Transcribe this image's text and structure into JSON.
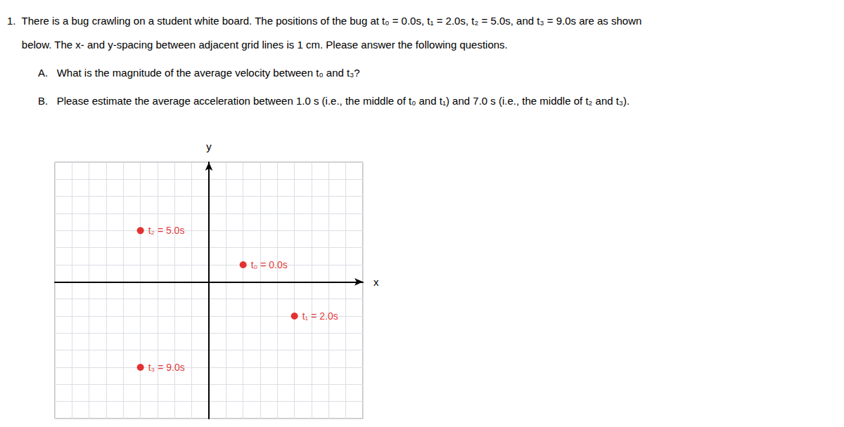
{
  "chart_data": {
    "type": "scatter",
    "annotations": [
      "1.  There is a bug crawling on a student white board. The positions of the bug at t₀ = 0.0s, t₁ = 2.0s, t₂ = 5.0s, and t₃ = 9.0s are as shown",
      "     below. The x- and y-spacing between adjacent grid lines is 1 cm. Please answer the following questions.",
      "A.   What is the magnitude of the average velocity between t₀ and t₃?",
      "B.   Please estimate the average acceleration between 1.0 s (i.e., the middle of t₀ and t₁) and 7.0 s (i.e., the middle of t₂ and t₃)."
    ],
    "xlabel": "x",
    "ylabel": "y",
    "x": [
      2,
      5,
      -4,
      -4
    ],
    "values": [
      1,
      -2,
      3,
      -5
    ],
    "labels": [
      "t₀ = 0.0s",
      "t₁ = 2.0s",
      "t₂ = 5.0s",
      "t₃ = 9.0s"
    ],
    "color": "#dd0000",
    "xlim": [
      -9,
      9
    ],
    "ylim": [
      -8,
      7
    ],
    "xticks": [
      -9,
      -8,
      -7,
      -6,
      -5,
      -4,
      -3,
      -2,
      -1,
      0,
      1,
      2,
      3,
      4,
      5,
      6,
      7,
      8,
      9
    ],
    "yticks": [
      -8,
      -7,
      -6,
      -5,
      -4,
      -3,
      -2,
      -1,
      0,
      1,
      2,
      3,
      4,
      5,
      6,
      7
    ],
    "grid": true,
    "tick_labels": false
  }
}
